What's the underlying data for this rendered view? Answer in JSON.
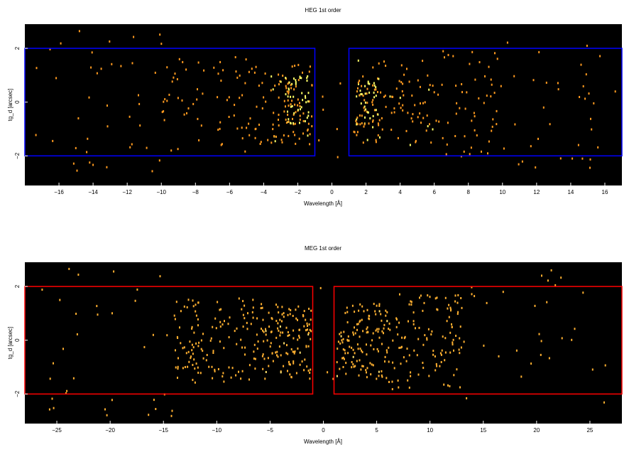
{
  "chart_data": [
    {
      "type": "heatmap",
      "title": "HEG 1st order",
      "xlabel": "Wavelength [Å]",
      "ylabel": "tg_d [arcsec]",
      "xlim": [
        -18,
        17
      ],
      "ylim": [
        -3.1,
        2.9
      ],
      "xticks": [
        -16,
        -14,
        -12,
        -10,
        -8,
        -6,
        -4,
        -2,
        0,
        2,
        4,
        6,
        8,
        10,
        12,
        14,
        16
      ],
      "yticks": [
        -2,
        0,
        2
      ],
      "background_color": "#000000",
      "event_color": "#ff9a1f",
      "hot_color": "#ffff66",
      "region_color": "#0000ff",
      "regions": [
        {
          "name": "minus-order",
          "x": [
            -18,
            -1
          ],
          "y": [
            -2,
            2
          ]
        },
        {
          "name": "plus-order",
          "x": [
            1,
            17
          ],
          "y": [
            -2,
            2
          ]
        }
      ],
      "events": {
        "seed": 7,
        "clusters": [
          {
            "xmin": -17.8,
            "xmax": -10,
            "ymin": -2.8,
            "ymax": 2.7,
            "count": 40,
            "hot": 0
          },
          {
            "xmin": -10,
            "xmax": -5,
            "ymin": -1.8,
            "ymax": 1.8,
            "count": 60,
            "hot": 0
          },
          {
            "xmin": -5,
            "xmax": -1.2,
            "ymin": -1.6,
            "ymax": 1.6,
            "count": 90,
            "hot": 0.1
          },
          {
            "xmin": -2.8,
            "xmax": -1.4,
            "ymin": -0.8,
            "ymax": 1.0,
            "count": 60,
            "hot": 0.6
          },
          {
            "xmin": 1.4,
            "xmax": 2.8,
            "ymin": -0.8,
            "ymax": 1.0,
            "count": 60,
            "hot": 0.6
          },
          {
            "xmin": 1.2,
            "xmax": 6,
            "ymin": -1.6,
            "ymax": 1.6,
            "count": 90,
            "hot": 0.1
          },
          {
            "xmin": 6,
            "xmax": 10,
            "ymin": -2.0,
            "ymax": 2.0,
            "count": 55,
            "hot": 0
          },
          {
            "xmin": 10,
            "xmax": 16.8,
            "ymin": -2.8,
            "ymax": 2.7,
            "count": 35,
            "hot": 0
          },
          {
            "xmin": -1,
            "xmax": 1,
            "ymin": -3,
            "ymax": 2.8,
            "count": 6,
            "hot": 0
          }
        ]
      }
    },
    {
      "type": "heatmap",
      "title": "MEG 1st order",
      "xlabel": "Wavelength [Å]",
      "ylabel": "tg_d [arcsec]",
      "xlim": [
        -28,
        28
      ],
      "ylim": [
        -3.1,
        2.9
      ],
      "xticks": [
        -25,
        -20,
        -15,
        -10,
        -5,
        0,
        5,
        10,
        15,
        20,
        25
      ],
      "yticks": [
        -2,
        0,
        2
      ],
      "background_color": "#000000",
      "event_color": "#ffb030",
      "hot_color": "#ffe070",
      "region_color": "#ff0000",
      "regions": [
        {
          "name": "minus-order",
          "x": [
            -28,
            -1
          ],
          "y": [
            -2,
            2
          ]
        },
        {
          "name": "plus-order",
          "x": [
            1,
            28
          ],
          "y": [
            -2,
            2
          ]
        }
      ],
      "events": {
        "seed": 13,
        "clusters": [
          {
            "xmin": -27.8,
            "xmax": -14,
            "ymin": -2.8,
            "ymax": 2.7,
            "count": 35,
            "hot": 0
          },
          {
            "xmin": -14,
            "xmax": -6,
            "ymin": -1.6,
            "ymax": 1.6,
            "count": 130,
            "hot": 0
          },
          {
            "xmin": -6,
            "xmax": -1.2,
            "ymin": -1.4,
            "ymax": 1.4,
            "count": 130,
            "hot": 0.05
          },
          {
            "xmin": 1.2,
            "xmax": 6,
            "ymin": -1.4,
            "ymax": 1.4,
            "count": 130,
            "hot": 0.05
          },
          {
            "xmin": 6,
            "xmax": 13,
            "ymin": -1.8,
            "ymax": 1.8,
            "count": 120,
            "hot": 0
          },
          {
            "xmin": 13,
            "xmax": 27.8,
            "ymin": -2.8,
            "ymax": 2.7,
            "count": 30,
            "hot": 0
          },
          {
            "xmin": -1,
            "xmax": 1,
            "ymin": -3,
            "ymax": 2.8,
            "count": 3,
            "hot": 0
          }
        ]
      }
    }
  ]
}
